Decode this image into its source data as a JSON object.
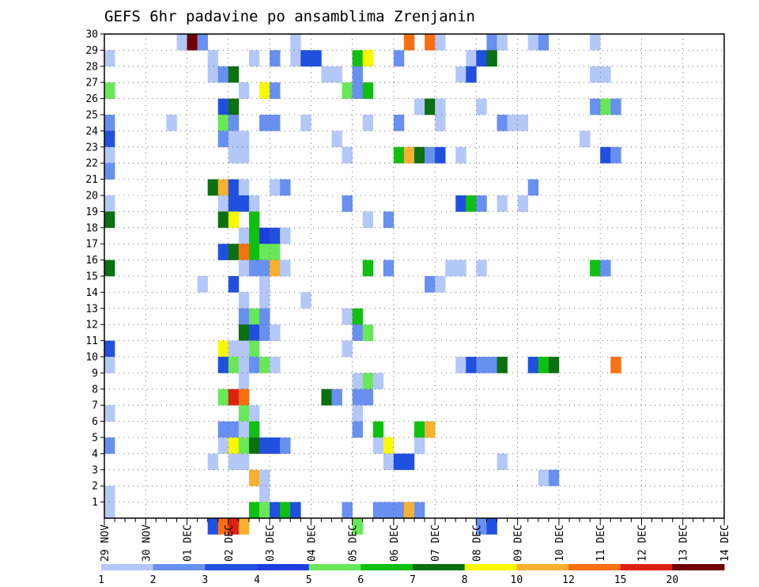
{
  "chart_data": {
    "type": "heatmap",
    "title": "GEFS 6hr padavine po ansamblima Zrenjanin",
    "x_ticks": [
      "29 NOV",
      "30 NOV",
      "01 DEC",
      "02 DEC",
      "03 DEC",
      "04 DEC",
      "05 DEC",
      "06 DEC",
      "07 DEC",
      "08 DEC",
      "09 DEC",
      "10 DEC",
      "11 DEC",
      "12 DEC",
      "13 DEC",
      "14 DEC"
    ],
    "y_ticks": [
      "1",
      "2",
      "3",
      "4",
      "5",
      "6",
      "7",
      "8",
      "9",
      "10",
      "11",
      "12",
      "13",
      "14",
      "15",
      "16",
      "17",
      "18",
      "19",
      "20",
      "21",
      "22",
      "23",
      "24",
      "25",
      "26",
      "27",
      "28",
      "29",
      "30"
    ],
    "x_unit": "6-hour steps from 29 NOV 00Z",
    "y_unit": "ensemble member",
    "grid": true,
    "colorbar": {
      "levels": [
        "1",
        "2",
        "3",
        "4",
        "5",
        "6",
        "7",
        "8",
        "10",
        "12",
        "15",
        "20"
      ],
      "colors": [
        "#b4c8f8",
        "#6890f0",
        "#2050e0",
        "#1e3ce0",
        "#68e858",
        "#10c010",
        "#0a7010",
        "#f8f800",
        "#f8b030",
        "#f87010",
        "#e02010",
        "#700000"
      ]
    },
    "cells": [
      [
        30,
        7,
        0
      ],
      [
        30,
        8,
        11
      ],
      [
        30,
        9,
        1
      ],
      [
        30,
        18,
        0
      ],
      [
        30,
        29,
        9
      ],
      [
        30,
        31,
        9
      ],
      [
        30,
        32,
        0
      ],
      [
        30,
        37,
        1
      ],
      [
        30,
        38,
        0
      ],
      [
        30,
        41,
        0
      ],
      [
        30,
        42,
        1
      ],
      [
        30,
        47,
        0
      ],
      [
        29,
        0,
        0
      ],
      [
        29,
        10,
        0
      ],
      [
        29,
        14,
        0
      ],
      [
        29,
        16,
        1
      ],
      [
        29,
        18,
        0
      ],
      [
        29,
        19,
        2
      ],
      [
        29,
        20,
        2
      ],
      [
        29,
        24,
        5
      ],
      [
        29,
        25,
        7
      ],
      [
        29,
        28,
        1
      ],
      [
        29,
        35,
        0
      ],
      [
        29,
        36,
        2
      ],
      [
        29,
        37,
        6
      ],
      [
        28,
        10,
        0
      ],
      [
        28,
        11,
        1
      ],
      [
        28,
        12,
        6
      ],
      [
        28,
        21,
        0
      ],
      [
        28,
        22,
        0
      ],
      [
        28,
        24,
        1
      ],
      [
        28,
        34,
        0
      ],
      [
        28,
        35,
        2
      ],
      [
        28,
        47,
        0
      ],
      [
        28,
        48,
        0
      ],
      [
        27,
        0,
        4
      ],
      [
        27,
        13,
        0
      ],
      [
        27,
        15,
        7
      ],
      [
        27,
        16,
        1
      ],
      [
        27,
        23,
        4
      ],
      [
        27,
        24,
        1
      ],
      [
        27,
        25,
        5
      ],
      [
        26,
        11,
        2
      ],
      [
        26,
        12,
        6
      ],
      [
        26,
        30,
        0
      ],
      [
        26,
        31,
        6
      ],
      [
        26,
        32,
        0
      ],
      [
        26,
        36,
        0
      ],
      [
        26,
        47,
        1
      ],
      [
        26,
        48,
        4
      ],
      [
        26,
        49,
        1
      ],
      [
        25,
        0,
        1
      ],
      [
        25,
        6,
        0
      ],
      [
        25,
        11,
        4
      ],
      [
        25,
        12,
        1
      ],
      [
        25,
        15,
        1
      ],
      [
        25,
        16,
        1
      ],
      [
        25,
        19,
        0
      ],
      [
        25,
        25,
        0
      ],
      [
        25,
        28,
        1
      ],
      [
        25,
        32,
        0
      ],
      [
        25,
        38,
        1
      ],
      [
        25,
        39,
        0
      ],
      [
        25,
        40,
        0
      ],
      [
        24,
        0,
        2
      ],
      [
        24,
        11,
        1
      ],
      [
        24,
        12,
        0
      ],
      [
        24,
        13,
        0
      ],
      [
        24,
        22,
        0
      ],
      [
        24,
        46,
        0
      ],
      [
        23,
        0,
        0
      ],
      [
        23,
        12,
        0
      ],
      [
        23,
        13,
        0
      ],
      [
        23,
        23,
        0
      ],
      [
        23,
        28,
        5
      ],
      [
        23,
        29,
        8
      ],
      [
        23,
        30,
        6
      ],
      [
        23,
        31,
        1
      ],
      [
        23,
        32,
        2
      ],
      [
        23,
        34,
        0
      ],
      [
        23,
        48,
        2
      ],
      [
        23,
        49,
        1
      ],
      [
        22,
        0,
        1
      ],
      [
        21,
        10,
        6
      ],
      [
        21,
        11,
        8
      ],
      [
        21,
        12,
        2
      ],
      [
        21,
        13,
        0
      ],
      [
        21,
        16,
        0
      ],
      [
        21,
        17,
        1
      ],
      [
        21,
        41,
        1
      ],
      [
        20,
        0,
        0
      ],
      [
        20,
        11,
        0
      ],
      [
        20,
        12,
        2
      ],
      [
        20,
        13,
        2
      ],
      [
        20,
        14,
        0
      ],
      [
        20,
        23,
        1
      ],
      [
        20,
        34,
        2
      ],
      [
        20,
        35,
        5
      ],
      [
        20,
        36,
        1
      ],
      [
        20,
        38,
        0
      ],
      [
        20,
        40,
        0
      ],
      [
        19,
        0,
        6
      ],
      [
        19,
        11,
        6
      ],
      [
        19,
        12,
        7
      ],
      [
        19,
        14,
        5
      ],
      [
        19,
        25,
        0
      ],
      [
        19,
        27,
        1
      ],
      [
        18,
        13,
        0
      ],
      [
        18,
        14,
        5
      ],
      [
        18,
        15,
        3
      ],
      [
        18,
        16,
        2
      ],
      [
        18,
        17,
        0
      ],
      [
        17,
        11,
        2
      ],
      [
        17,
        12,
        6
      ],
      [
        17,
        13,
        9
      ],
      [
        17,
        14,
        5
      ],
      [
        17,
        15,
        4
      ],
      [
        17,
        16,
        4
      ],
      [
        16,
        0,
        6
      ],
      [
        16,
        13,
        0
      ],
      [
        16,
        14,
        1
      ],
      [
        16,
        15,
        1
      ],
      [
        16,
        16,
        8
      ],
      [
        16,
        17,
        0
      ],
      [
        16,
        25,
        5
      ],
      [
        16,
        27,
        1
      ],
      [
        16,
        33,
        0
      ],
      [
        16,
        34,
        0
      ],
      [
        16,
        36,
        0
      ],
      [
        16,
        47,
        5
      ],
      [
        16,
        48,
        1
      ],
      [
        15,
        9,
        0
      ],
      [
        15,
        12,
        2
      ],
      [
        15,
        15,
        0
      ],
      [
        15,
        31,
        1
      ],
      [
        15,
        32,
        0
      ],
      [
        14,
        13,
        0
      ],
      [
        14,
        15,
        0
      ],
      [
        14,
        19,
        0
      ],
      [
        13,
        13,
        1
      ],
      [
        13,
        14,
        4
      ],
      [
        13,
        15,
        1
      ],
      [
        13,
        23,
        0
      ],
      [
        13,
        24,
        5
      ],
      [
        12,
        13,
        6
      ],
      [
        12,
        14,
        2
      ],
      [
        12,
        15,
        1
      ],
      [
        12,
        16,
        0
      ],
      [
        12,
        24,
        1
      ],
      [
        12,
        25,
        4
      ],
      [
        11,
        0,
        2
      ],
      [
        11,
        11,
        7
      ],
      [
        11,
        12,
        0
      ],
      [
        11,
        13,
        0
      ],
      [
        11,
        14,
        4
      ],
      [
        11,
        23,
        0
      ],
      [
        10,
        0,
        0
      ],
      [
        10,
        11,
        2
      ],
      [
        10,
        12,
        4
      ],
      [
        10,
        13,
        0
      ],
      [
        10,
        14,
        1
      ],
      [
        10,
        15,
        4
      ],
      [
        10,
        16,
        0
      ],
      [
        10,
        34,
        0
      ],
      [
        10,
        35,
        2
      ],
      [
        10,
        36,
        1
      ],
      [
        10,
        37,
        1
      ],
      [
        10,
        38,
        6
      ],
      [
        10,
        41,
        2
      ],
      [
        10,
        42,
        5
      ],
      [
        10,
        43,
        6
      ],
      [
        10,
        49,
        9
      ],
      [
        9,
        13,
        0
      ],
      [
        9,
        24,
        0
      ],
      [
        9,
        25,
        4
      ],
      [
        9,
        26,
        0
      ],
      [
        8,
        11,
        4
      ],
      [
        8,
        12,
        10
      ],
      [
        8,
        13,
        9
      ],
      [
        8,
        21,
        6
      ],
      [
        8,
        22,
        1
      ],
      [
        8,
        24,
        1
      ],
      [
        8,
        25,
        1
      ],
      [
        7,
        0,
        0
      ],
      [
        7,
        13,
        4
      ],
      [
        7,
        14,
        0
      ],
      [
        7,
        24,
        0
      ],
      [
        6,
        11,
        1
      ],
      [
        6,
        12,
        1
      ],
      [
        6,
        13,
        0
      ],
      [
        6,
        14,
        5
      ],
      [
        6,
        24,
        1
      ],
      [
        6,
        26,
        5
      ],
      [
        6,
        30,
        5
      ],
      [
        6,
        31,
        8
      ],
      [
        5,
        0,
        1
      ],
      [
        5,
        11,
        0
      ],
      [
        5,
        12,
        7
      ],
      [
        5,
        13,
        4
      ],
      [
        5,
        14,
        6
      ],
      [
        5,
        15,
        2
      ],
      [
        5,
        16,
        2
      ],
      [
        5,
        17,
        1
      ],
      [
        5,
        26,
        0
      ],
      [
        5,
        27,
        7
      ],
      [
        5,
        30,
        0
      ],
      [
        4,
        10,
        0
      ],
      [
        4,
        12,
        0
      ],
      [
        4,
        13,
        0
      ],
      [
        4,
        27,
        0
      ],
      [
        4,
        28,
        2
      ],
      [
        4,
        29,
        2
      ],
      [
        4,
        38,
        0
      ],
      [
        3,
        14,
        8
      ],
      [
        3,
        15,
        0
      ],
      [
        3,
        42,
        0
      ],
      [
        3,
        43,
        1
      ],
      [
        2,
        0,
        0
      ],
      [
        2,
        15,
        0
      ],
      [
        1,
        0,
        0
      ],
      [
        1,
        14,
        5
      ],
      [
        1,
        15,
        4
      ],
      [
        1,
        16,
        2
      ],
      [
        1,
        17,
        5
      ],
      [
        1,
        18,
        2
      ],
      [
        1,
        23,
        1
      ],
      [
        1,
        26,
        1
      ],
      [
        1,
        27,
        1
      ],
      [
        1,
        28,
        1
      ],
      [
        1,
        29,
        8
      ],
      [
        1,
        30,
        1
      ],
      [
        0,
        10,
        2
      ],
      [
        0,
        11,
        9
      ],
      [
        0,
        12,
        10
      ],
      [
        0,
        13,
        8
      ],
      [
        0,
        24,
        4
      ],
      [
        0,
        36,
        1
      ],
      [
        0,
        37,
        2
      ]
    ]
  }
}
